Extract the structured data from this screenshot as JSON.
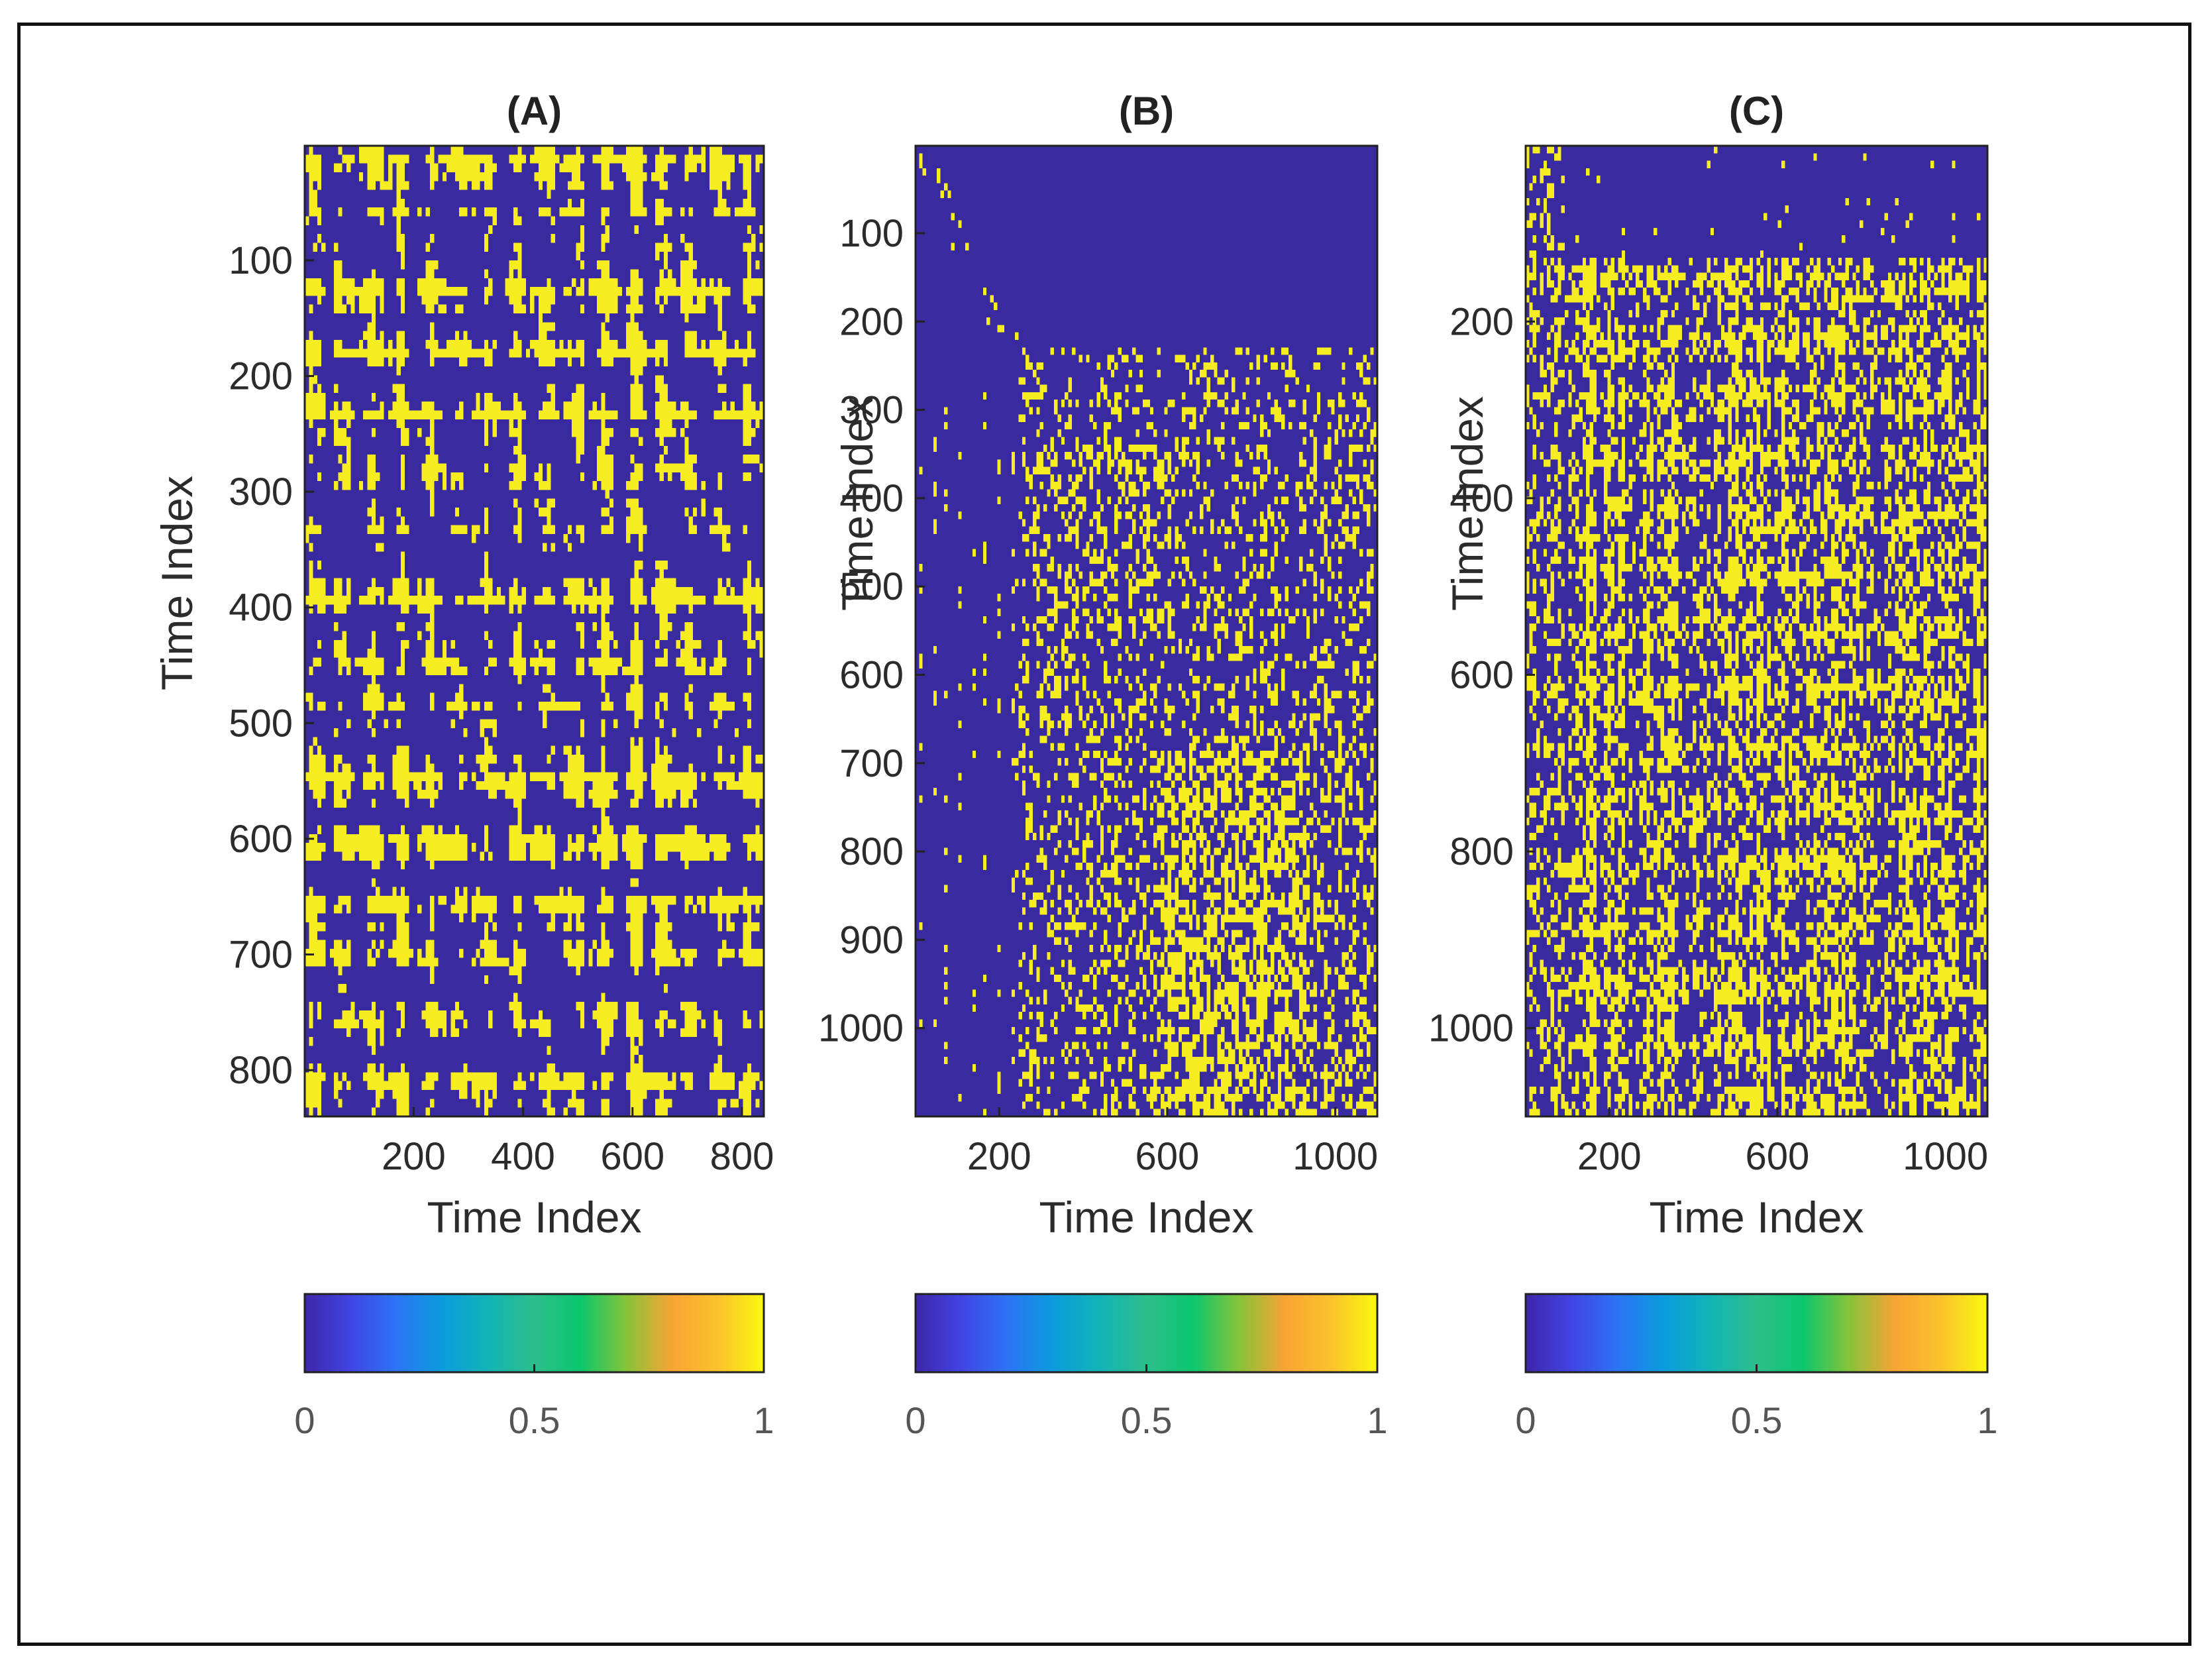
{
  "figure": {
    "colors": {
      "low": "#3a2aa0",
      "high": "#f5ed20",
      "axis": "#222222",
      "text": "#2b2b2b"
    },
    "colorbar_stops": [
      "#3e26a8",
      "#4144e4",
      "#2c74f5",
      "#0a9cdc",
      "#12b4b6",
      "#2ebe8c",
      "#0ac76e",
      "#86c33a",
      "#f8a434",
      "#fbc22c",
      "#f9f90e"
    ]
  },
  "chart_data": [
    {
      "type": "heatmap",
      "title": "(A)",
      "xlabel": "Time Index",
      "ylabel": "Time Index",
      "xlim": [
        1,
        840
      ],
      "ylim": [
        1,
        840
      ],
      "xticks": [
        200,
        400,
        600,
        800
      ],
      "yticks": [
        100,
        200,
        300,
        400,
        500,
        600,
        700,
        800
      ],
      "values": "binary recurrence matrix (0/1), dense yellow blocks",
      "colorbar": {
        "ticks": [
          0,
          0.5,
          1
        ],
        "tick_labels": [
          "0",
          "0.5",
          "1"
        ]
      }
    },
    {
      "type": "heatmap",
      "title": "(B)",
      "xlabel": "Time Index",
      "ylabel": "Time Index",
      "xlim": [
        1,
        1100
      ],
      "ylim": [
        1,
        1100
      ],
      "xticks": [
        200,
        600,
        1000
      ],
      "yticks": [
        100,
        200,
        300,
        400,
        500,
        600,
        700,
        800,
        900,
        1000
      ],
      "values": "binary recurrence matrix (0/1), sparse upper region",
      "colorbar": {
        "ticks": [
          0,
          0.5,
          1
        ],
        "tick_labels": [
          "0",
          "0.5",
          "1"
        ]
      }
    },
    {
      "type": "heatmap",
      "title": "(C)",
      "xlabel": "Time Index",
      "ylabel": "Time Index",
      "xlim": [
        1,
        1100
      ],
      "ylim": [
        1,
        1100
      ],
      "xticks": [
        200,
        600,
        1000
      ],
      "yticks": [
        200,
        400,
        600,
        800,
        1000
      ],
      "values": "binary recurrence matrix (0/1), dense below row 130",
      "colorbar": {
        "ticks": [
          0,
          0.5,
          1
        ],
        "tick_labels": [
          "0",
          "0.5",
          "1"
        ]
      }
    }
  ]
}
